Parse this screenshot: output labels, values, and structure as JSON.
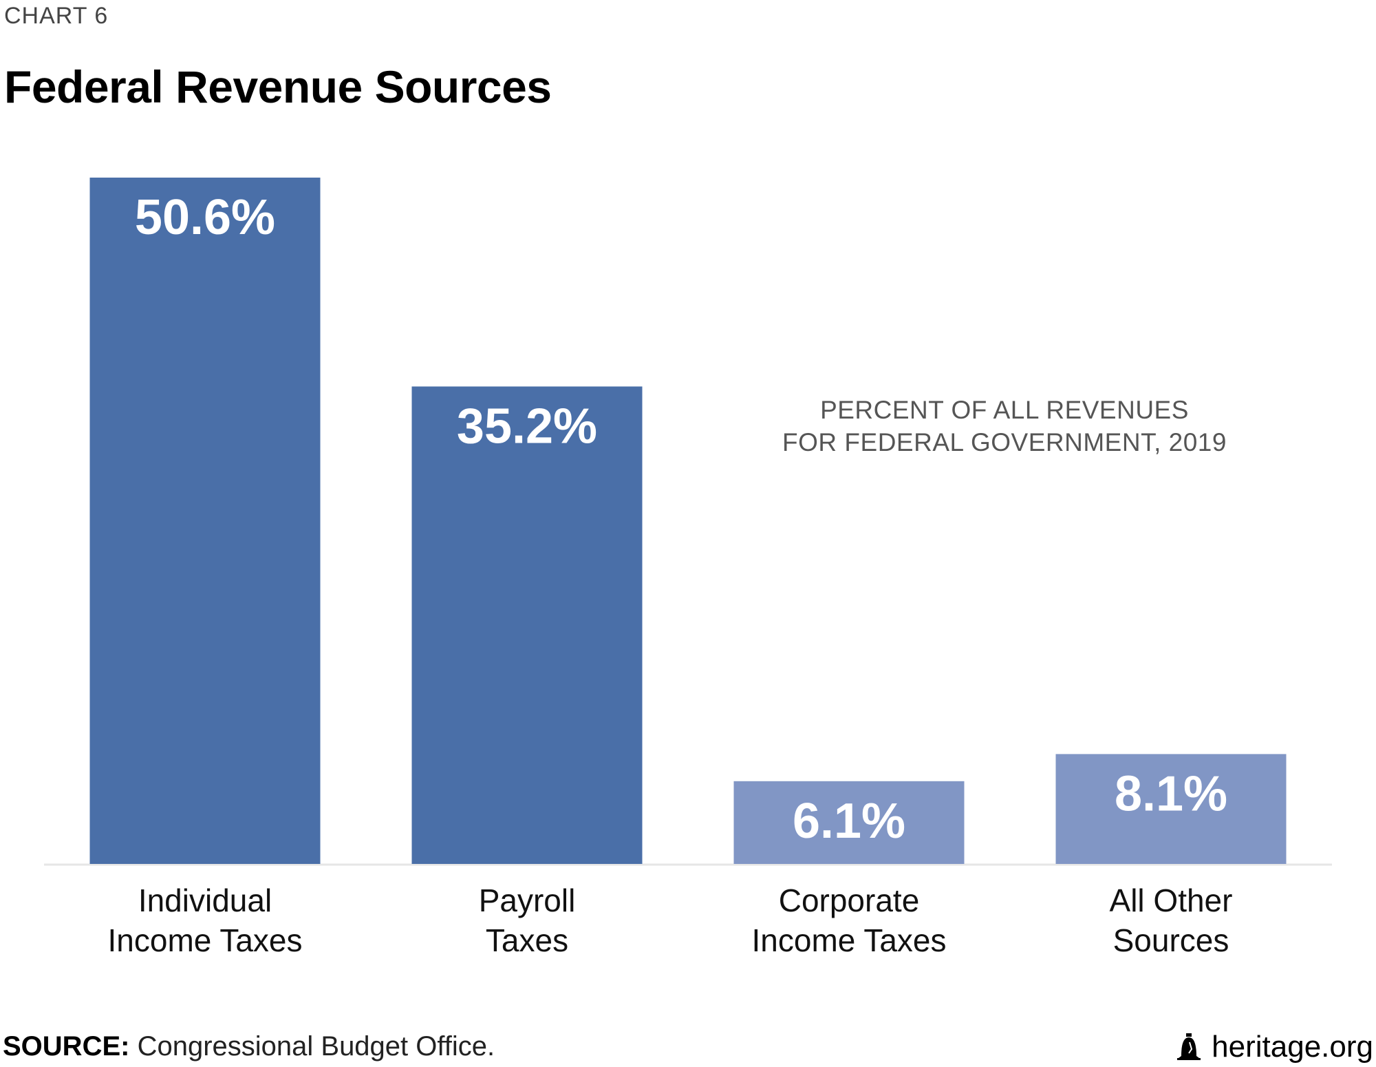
{
  "header": {
    "chart_number": "CHART 6",
    "title": "Federal Revenue Sources"
  },
  "chart_data": {
    "type": "bar",
    "title": "Federal Revenue Sources",
    "subtitle_lines": [
      "PERCENT OF ALL REVENUES",
      "FOR FEDERAL GOVERNMENT, 2019"
    ],
    "categories": [
      [
        "Individual",
        "Income Taxes"
      ],
      [
        "Payroll",
        "Taxes"
      ],
      [
        "Corporate",
        "Income Taxes"
      ],
      [
        "All Other",
        "Sources"
      ]
    ],
    "values": [
      50.6,
      35.2,
      6.1,
      8.1
    ],
    "value_labels": [
      "50.6%",
      "35.2%",
      "6.1%",
      "8.1%"
    ],
    "ylim": [
      0,
      50.6
    ],
    "xlabel": "",
    "ylabel": "",
    "grid": false,
    "colors": {
      "primary": "#4a6fa8",
      "secondary": "#8196c5",
      "baseline": "#e6e6e6",
      "label_text": "#ffffff"
    },
    "bar_color_index": [
      0,
      0,
      1,
      1
    ]
  },
  "footer": {
    "source_label": "SOURCE:",
    "source_text": " Congressional Budget Office.",
    "brand": "heritage.org",
    "brand_icon": "liberty-bell-icon"
  }
}
